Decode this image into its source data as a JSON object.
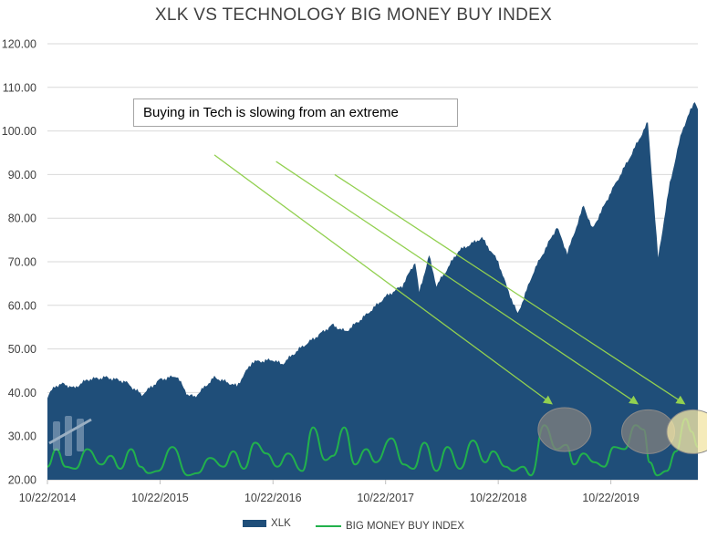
{
  "chart_data": {
    "type": "area",
    "title": "XLK VS TECHNOLOGY BIG MONEY BUY INDEX",
    "xlabel": "",
    "ylabel": "",
    "x_tick_labels": [
      "10/22/2014",
      "10/22/2015",
      "10/22/2016",
      "10/22/2017",
      "10/22/2018",
      "10/22/2019"
    ],
    "ylim": [
      20,
      120
    ],
    "y_ticks": [
      "20.00",
      "30.00",
      "40.00",
      "50.00",
      "60.00",
      "70.00",
      "80.00",
      "90.00",
      "100.00",
      "110.00",
      "120.00"
    ],
    "grid": true,
    "legend_position": "bottom",
    "annotation": "Buying in Tech is slowing from an extreme",
    "series": [
      {
        "name": "XLK",
        "style": "area",
        "color": "#1f4e79",
        "points": [
          [
            "10/22/2014",
            39.0
          ],
          [
            "11/15/2014",
            41.5
          ],
          [
            "12/15/2014",
            42.0
          ],
          [
            "1/15/2015",
            41.0
          ],
          [
            "3/1/2015",
            43.0
          ],
          [
            "5/1/2015",
            43.5
          ],
          [
            "7/1/2015",
            42.5
          ],
          [
            "8/24/2015",
            39.5
          ],
          [
            "10/22/2015",
            43.0
          ],
          [
            "12/15/2015",
            43.8
          ],
          [
            "1/20/2016",
            39.5
          ],
          [
            "2/11/2016",
            39.0
          ],
          [
            "4/15/2016",
            43.5
          ],
          [
            "6/27/2016",
            41.5
          ],
          [
            "8/15/2016",
            47.0
          ],
          [
            "10/22/2016",
            47.5
          ],
          [
            "11/20/2016",
            46.5
          ],
          [
            "1/15/2017",
            50.0
          ],
          [
            "3/15/2017",
            53.0
          ],
          [
            "5/1/2017",
            55.5
          ],
          [
            "6/15/2017",
            54.0
          ],
          [
            "8/15/2017",
            57.5
          ],
          [
            "10/22/2017",
            62.0
          ],
          [
            "12/15/2017",
            64.5
          ],
          [
            "1/26/2018",
            70.0
          ],
          [
            "2/8/2018",
            63.0
          ],
          [
            "3/12/2018",
            71.5
          ],
          [
            "4/5/2018",
            64.5
          ],
          [
            "6/15/2018",
            72.5
          ],
          [
            "8/30/2018",
            75.5
          ],
          [
            "10/22/2018",
            70.0
          ],
          [
            "11/20/2018",
            64.0
          ],
          [
            "12/24/2018",
            58.0
          ],
          [
            "2/15/2019",
            68.0
          ],
          [
            "4/30/2019",
            78.0
          ],
          [
            "6/3/2019",
            72.0
          ],
          [
            "7/26/2019",
            83.0
          ],
          [
            "8/23/2019",
            77.5
          ],
          [
            "10/22/2019",
            86.0
          ],
          [
            "12/15/2019",
            93.0
          ],
          [
            "2/19/2020",
            102.0
          ],
          [
            "3/23/2020",
            71.0
          ],
          [
            "4/30/2020",
            88.0
          ],
          [
            "6/8/2020",
            100.0
          ],
          [
            "7/20/2020",
            107.0
          ],
          [
            "7/30/2020",
            105.0
          ]
        ]
      },
      {
        "name": "BIG MONEY BUY INDEX",
        "style": "line",
        "color": "#22b14c",
        "points": [
          [
            "10/22/2014",
            23.0
          ],
          [
            "11/20/2014",
            27.0
          ],
          [
            "12/20/2014",
            23.0
          ],
          [
            "1/20/2015",
            22.5
          ],
          [
            "2/28/2015",
            27.0
          ],
          [
            "4/15/2015",
            23.5
          ],
          [
            "5/15/2015",
            25.5
          ],
          [
            "6/15/2015",
            22.5
          ],
          [
            "7/20/2015",
            27.0
          ],
          [
            "8/20/2015",
            23.0
          ],
          [
            "9/15/2015",
            21.5
          ],
          [
            "10/15/2015",
            22.0
          ],
          [
            "12/1/2015",
            27.5
          ],
          [
            "1/20/2016",
            21.0
          ],
          [
            "2/20/2016",
            21.5
          ],
          [
            "4/1/2016",
            25.0
          ],
          [
            "5/15/2016",
            23.0
          ],
          [
            "6/15/2016",
            26.5
          ],
          [
            "7/20/2016",
            22.5
          ],
          [
            "8/25/2016",
            28.5
          ],
          [
            "10/1/2016",
            26.0
          ],
          [
            "11/5/2016",
            23.0
          ],
          [
            "12/10/2016",
            26.0
          ],
          [
            "1/25/2017",
            22.0
          ],
          [
            "3/1/2017",
            32.0
          ],
          [
            "4/10/2017",
            24.5
          ],
          [
            "5/5/2017",
            25.5
          ],
          [
            "6/10/2017",
            32.0
          ],
          [
            "7/15/2017",
            23.5
          ],
          [
            "8/20/2017",
            27.0
          ],
          [
            "9/20/2017",
            24.0
          ],
          [
            "11/10/2017",
            29.5
          ],
          [
            "12/20/2017",
            23.5
          ],
          [
            "1/20/2018",
            22.5
          ],
          [
            "2/25/2018",
            28.5
          ],
          [
            "4/5/2018",
            22.0
          ],
          [
            "5/10/2018",
            27.5
          ],
          [
            "6/20/2018",
            22.5
          ],
          [
            "8/1/2018",
            29.0
          ],
          [
            "9/10/2018",
            24.0
          ],
          [
            "10/5/2018",
            26.5
          ],
          [
            "11/15/2018",
            23.0
          ],
          [
            "12/10/2018",
            22.0
          ],
          [
            "1/10/2019",
            23.0
          ],
          [
            "2/5/2019",
            21.0
          ],
          [
            "3/20/2019",
            32.5
          ],
          [
            "4/30/2019",
            27.0
          ],
          [
            "5/30/2019",
            28.0
          ],
          [
            "6/25/2019",
            23.5
          ],
          [
            "7/25/2019",
            26.0
          ],
          [
            "8/30/2019",
            24.0
          ],
          [
            "9/30/2019",
            23.0
          ],
          [
            "11/1/2019",
            27.5
          ],
          [
            "12/5/2019",
            27.0
          ],
          [
            "1/10/2020",
            32.5
          ],
          [
            "2/5/2020",
            31.5
          ],
          [
            "2/25/2020",
            24.0
          ],
          [
            "3/20/2020",
            21.0
          ],
          [
            "4/20/2020",
            22.0
          ],
          [
            "5/20/2020",
            26.5
          ],
          [
            "6/20/2020",
            34.0
          ],
          [
            "7/10/2020",
            31.0
          ],
          [
            "7/30/2020",
            27.5
          ]
        ]
      }
    ],
    "arrows": [
      {
        "from": [
          "4/15/2016",
          94.5
        ],
        "to": [
          "4/12/2019",
          37.5
        ]
      },
      {
        "from": [
          "11/1/2016",
          93.0
        ],
        "to": [
          "1/15/2020",
          37.5
        ]
      },
      {
        "from": [
          "5/10/2017",
          90.0
        ],
        "to": [
          "6/15/2020",
          37.5
        ]
      }
    ],
    "highlight_circles": [
      {
        "center": [
          "5/25/2019",
          31.5
        ],
        "color": "#7f7f7f"
      },
      {
        "center": [
          "2/20/2020",
          31.0
        ],
        "color": "#7f7f7f"
      },
      {
        "center": [
          "7/15/2020",
          31.0
        ],
        "color": "#f2e6a6"
      }
    ]
  }
}
